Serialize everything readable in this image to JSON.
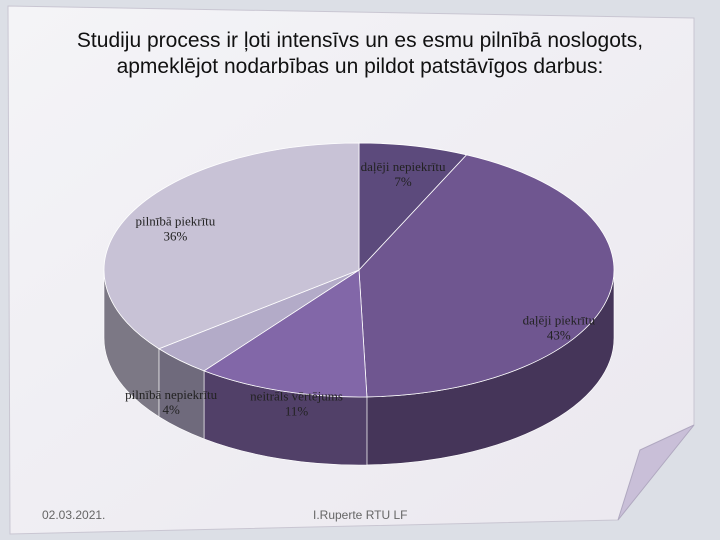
{
  "chart_data": {
    "type": "pie",
    "title": "Studiju process ir ļoti intensīvs un es esmu pilnībā noslogots, apmeklējot nodarbības un pildot patstāvīgos darbus:",
    "categories": [
      "daļēji nepiekrītu",
      "daļēji piekrītu",
      "neitrāls vērtējums",
      "pilnībā nepiekrītu",
      "pilnībā piekrītu"
    ],
    "values": [
      7,
      43,
      11,
      4,
      36
    ],
    "value_labels": [
      "7%",
      "43%",
      "11%",
      "4%",
      "36%"
    ],
    "colors": [
      "#5c4a7c",
      "#6f5690",
      "#8267a8",
      "#b3abc8",
      "#c8c2d6"
    ]
  },
  "footer": {
    "date": "02.03.2021.",
    "author": "I.Ruperte RTU LF"
  }
}
